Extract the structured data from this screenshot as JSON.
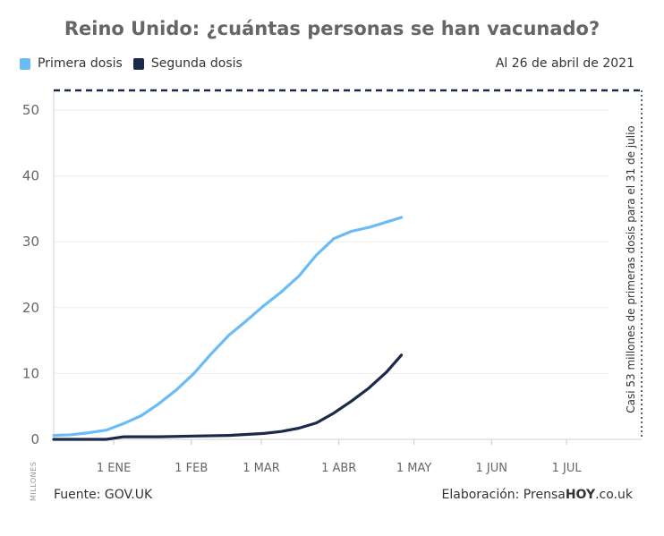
{
  "header": {
    "title": "Reino Unido: ¿cuántas personas se han vacunado?",
    "date_note": "Al 26 de abril de 2021"
  },
  "legend": [
    {
      "label": "Primera dosis",
      "color": "#6bbcf5"
    },
    {
      "label": "Segunda dosis",
      "color": "#1b2a4a"
    }
  ],
  "footer": {
    "source": "Fuente: GOV.UK",
    "credit_prefix": "Elaboración: Prensa",
    "credit_brand": "HOY",
    "credit_suffix": ".co.uk"
  },
  "chart_data": {
    "type": "line",
    "ylabel": "MILLONES",
    "ylim": [
      0,
      53
    ],
    "y_ticks": [
      "0",
      "10",
      "20",
      "30",
      "40",
      "50"
    ],
    "y_tick_values": [
      0,
      10,
      20,
      30,
      40,
      50
    ],
    "x_ticks": [
      "1 ENE",
      "1 FEB",
      "1 MAR",
      "1 ABR",
      "1 MAY",
      "1 JUN",
      "1 JUL"
    ],
    "x_tick_values": [
      "2021-01-01",
      "2021-02-01",
      "2021-03-01",
      "2021-04-01",
      "2021-05-01",
      "2021-06-01",
      "2021-07-01"
    ],
    "xlim": [
      "2020-12-08",
      "2021-07-31"
    ],
    "grid": "y",
    "target": {
      "value": 53,
      "date": "2021-07-31",
      "label": "Casi 53 millones de primeras dosis para el 31 de julio",
      "color": "#1b2a4a"
    },
    "series": [
      {
        "name": "Primera dosis",
        "color": "#6bbcf5",
        "x": [
          "2020-12-08",
          "2020-12-15",
          "2020-12-22",
          "2020-12-29",
          "2021-01-05",
          "2021-01-12",
          "2021-01-19",
          "2021-01-26",
          "2021-02-02",
          "2021-02-09",
          "2021-02-16",
          "2021-02-23",
          "2021-03-02",
          "2021-03-09",
          "2021-03-16",
          "2021-03-23",
          "2021-03-30",
          "2021-04-06",
          "2021-04-13",
          "2021-04-20",
          "2021-04-26"
        ],
        "values": [
          0.6,
          0.7,
          1.0,
          1.4,
          2.4,
          3.6,
          5.4,
          7.5,
          10.0,
          13.0,
          15.8,
          18.0,
          20.3,
          22.4,
          24.8,
          28.0,
          30.5,
          31.6,
          32.2,
          33.0,
          33.7
        ]
      },
      {
        "name": "Segunda dosis",
        "color": "#1b2a4a",
        "x": [
          "2020-12-08",
          "2020-12-29",
          "2021-01-05",
          "2021-01-19",
          "2021-02-02",
          "2021-02-16",
          "2021-03-02",
          "2021-03-09",
          "2021-03-16",
          "2021-03-23",
          "2021-03-30",
          "2021-04-06",
          "2021-04-13",
          "2021-04-20",
          "2021-04-26"
        ],
        "values": [
          0.0,
          0.0,
          0.4,
          0.4,
          0.5,
          0.6,
          0.9,
          1.2,
          1.7,
          2.5,
          4.0,
          5.8,
          7.8,
          10.2,
          12.8
        ]
      }
    ]
  }
}
